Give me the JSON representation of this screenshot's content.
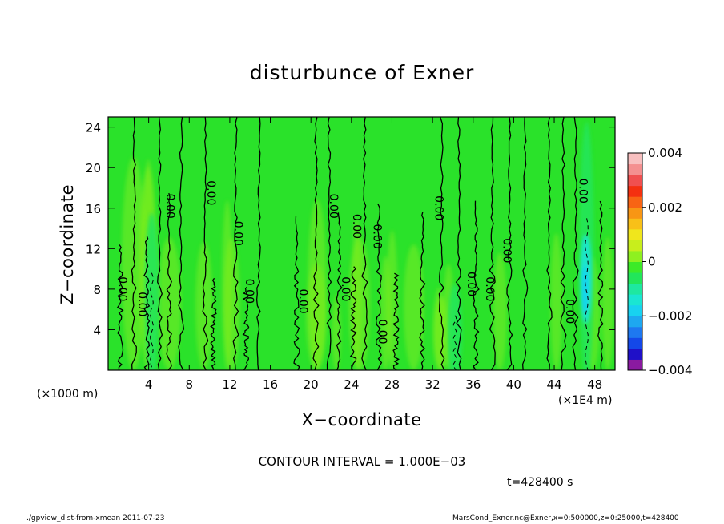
{
  "header": {
    "title": "disturbunce of Exner"
  },
  "axes": {
    "xlabel": "X−coordinate",
    "ylabel": "Z−coordinate",
    "x_unit_left": "(×1000 m)",
    "x_unit_right": "(×1E4 m)"
  },
  "annotations": {
    "contour_interval": "CONTOUR INTERVAL = 1.000E−03",
    "time": "t=428400 s",
    "footer_left": "./gpview_dist-from-xmean  2011-07-23",
    "footer_right": "MarsCond_Exner.nc@Exner,x=0:500000,z=0:25000,t=428400"
  },
  "chart_data": {
    "type": "heatmap",
    "title": "disturbunce of Exner",
    "xlabel": "X−coordinate",
    "ylabel": "Z−coordinate",
    "xlim": [
      0,
      50
    ],
    "ylim": [
      0,
      25
    ],
    "x_ticks": [
      4,
      8,
      12,
      16,
      20,
      24,
      28,
      32,
      36,
      40,
      44,
      48
    ],
    "y_ticks": [
      4,
      8,
      12,
      16,
      20,
      24
    ],
    "colorbar": {
      "range": [
        -0.004,
        0.004
      ],
      "tick_values": [
        0.004,
        0.002,
        0,
        -0.002,
        -0.004
      ],
      "tick_labels": [
        "0.004",
        "0.002",
        "0",
        "−0.002",
        "−0.004"
      ],
      "colors": [
        "#8a1aa0",
        "#1f10c8",
        "#1448e8",
        "#1e78f0",
        "#1ea8f0",
        "#18d2f0",
        "#1ae6d2",
        "#1ee8a0",
        "#22e65a",
        "#3cea28",
        "#8ef020",
        "#c8ee1c",
        "#f0e61c",
        "#f8c018",
        "#f89614",
        "#f86414",
        "#f43010",
        "#f05050",
        "#f49090",
        "#f8c0c0"
      ]
    },
    "background_value": 0,
    "contour_interval": 0.001,
    "negative_features": [
      {
        "x": 4.3,
        "z_top": 16.0,
        "value": -0.001
      },
      {
        "x": 34.2,
        "z_top": 9.0,
        "value": -0.001
      },
      {
        "x": 47.2,
        "z_top": 25.0,
        "value": -0.002
      }
    ],
    "contour_labels": [
      {
        "x": 1.4,
        "z": 8.0,
        "text": "0.00"
      },
      {
        "x": 3.3,
        "z": 6.5,
        "text": "0.00"
      },
      {
        "x": 6.1,
        "z": 16.2,
        "text": "0.00"
      },
      {
        "x": 10.1,
        "z": 17.5,
        "text": "0.00"
      },
      {
        "x": 12.8,
        "z": 13.5,
        "text": "0.00"
      },
      {
        "x": 13.9,
        "z": 7.8,
        "text": "0.00"
      },
      {
        "x": 19.2,
        "z": 6.8,
        "text": "0.00"
      },
      {
        "x": 22.2,
        "z": 16.2,
        "text": "0.00"
      },
      {
        "x": 23.4,
        "z": 8.0,
        "text": "0.00"
      },
      {
        "x": 24.5,
        "z": 14.2,
        "text": "0.00"
      },
      {
        "x": 26.5,
        "z": 13.2,
        "text": "0.00"
      },
      {
        "x": 27.0,
        "z": 3.8,
        "text": "0.00"
      },
      {
        "x": 32.6,
        "z": 16.0,
        "text": "0.00"
      },
      {
        "x": 35.8,
        "z": 8.5,
        "text": "0.00"
      },
      {
        "x": 37.6,
        "z": 8.0,
        "text": "0.00"
      },
      {
        "x": 39.3,
        "z": 11.8,
        "text": "0.00"
      },
      {
        "x": 45.5,
        "z": 5.8,
        "text": "0.00"
      },
      {
        "x": 46.8,
        "z": 17.7,
        "text": "0.00"
      }
    ]
  }
}
